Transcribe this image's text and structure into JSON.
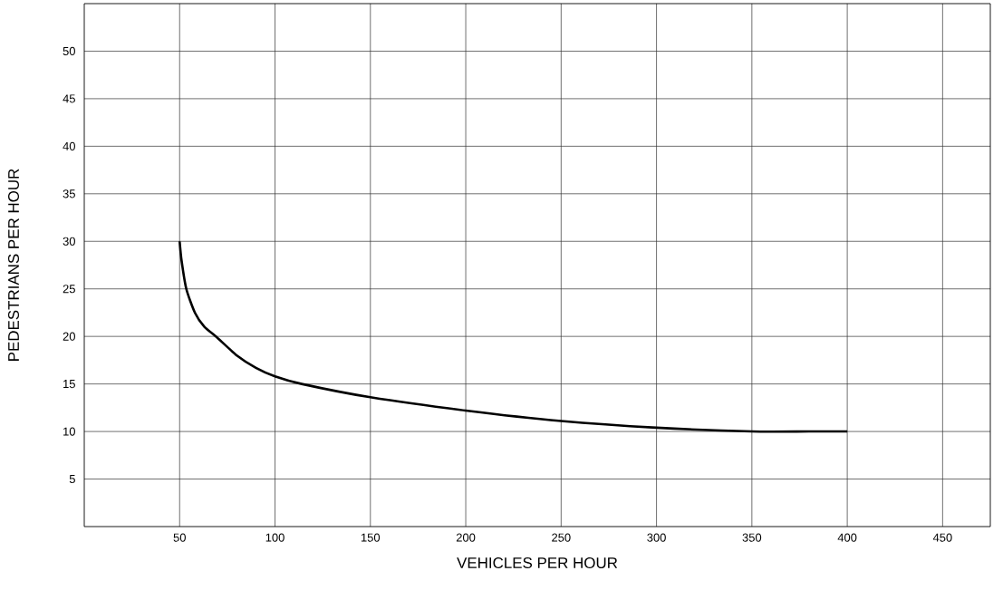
{
  "chart_data": {
    "type": "line",
    "xlabel": "VEHICLES PER HOUR",
    "ylabel": "PEDESTRIANS PER HOUR",
    "x": [
      50,
      51,
      53.5,
      58,
      63,
      69,
      80,
      90,
      100,
      114,
      150,
      200,
      250,
      300,
      350,
      380,
      400
    ],
    "series": [
      {
        "color": "#000000",
        "values": [
          30,
          28,
          25,
          22.5,
          21,
          20,
          18,
          16.7,
          15.8,
          15,
          13.6,
          12.2,
          11.1,
          10.4,
          10,
          10,
          10
        ]
      }
    ],
    "xlim": [
      0,
      475
    ],
    "ylim": [
      0,
      55
    ],
    "xticks": [
      50,
      100,
      150,
      200,
      250,
      300,
      350,
      400,
      450
    ],
    "yticks": [
      5,
      10,
      15,
      20,
      25,
      30,
      35,
      40,
      45,
      50
    ],
    "grid": true,
    "marker": "none",
    "line_style": "solid"
  }
}
